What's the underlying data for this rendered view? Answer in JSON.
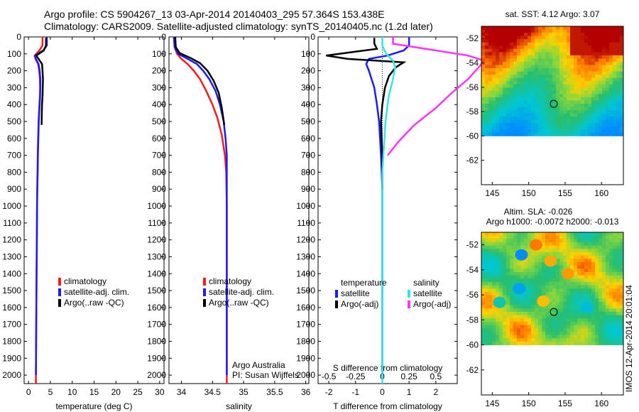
{
  "header": {
    "line1": "Argo profile: CS 5904267_13 03-Apr-2014 20140403_295 57.364S 153.438E",
    "line2": "Climatology: CARS2009. Satellite-adjusted climatology: synTS_20140405.nc (1.2d later)"
  },
  "colors": {
    "climatology": "#ff1a1a",
    "satellite": "#1a1aff",
    "argo": "#000000",
    "satellite_s": "#33e6e6",
    "argo_s": "#ff33ff"
  },
  "chart_data": [
    {
      "type": "line",
      "xlabel": "temperature (deg C)",
      "xticks": [
        0,
        5,
        10,
        15,
        20,
        25,
        30
      ],
      "xlim": [
        -1,
        31
      ],
      "ylim": [
        0,
        2050
      ],
      "yticks": [
        0,
        100,
        200,
        300,
        400,
        500,
        600,
        700,
        800,
        900,
        1000,
        1100,
        1200,
        1300,
        1400,
        1500,
        1600,
        1700,
        1800,
        1900,
        2000
      ],
      "legend": [
        "climatology",
        "satellite-adj. clim.",
        "Argo(..raw -QC)"
      ],
      "series": [
        {
          "name": "climatology",
          "color": "#ff1a1a",
          "x": [
            3.2,
            3.2,
            2.5,
            1.4,
            1.6,
            2.2,
            2.45,
            2.6,
            2.65,
            2.6,
            2.5,
            2.4,
            2.3,
            2.2,
            2.1,
            2.05,
            2.0,
            1.95,
            1.9,
            1.85,
            1.8,
            1.75,
            1.7,
            1.7
          ],
          "y": [
            0,
            50,
            80,
            110,
            130,
            160,
            200,
            250,
            300,
            350,
            400,
            450,
            500,
            600,
            700,
            800,
            900,
            1000,
            1200,
            1400,
            1600,
            1800,
            2000,
            2050
          ]
        },
        {
          "name": "satellite-adj. clim.",
          "color": "#1a1aff",
          "x": [
            4.2,
            4.2,
            3.4,
            1.5,
            1.7,
            2.3,
            2.55,
            2.7,
            2.7,
            2.65,
            2.55,
            2.45,
            2.35,
            2.25,
            2.15,
            2.1,
            2.0,
            1.95,
            1.9,
            1.85,
            1.8,
            1.75,
            1.7
          ],
          "y": [
            0,
            50,
            80,
            110,
            130,
            160,
            200,
            250,
            300,
            350,
            400,
            450,
            500,
            600,
            700,
            800,
            900,
            1000,
            1200,
            1400,
            1600,
            1800,
            2000
          ]
        },
        {
          "name": "Argo(..raw -QC)",
          "color": "#000000",
          "x": [
            4.0,
            4.0,
            3.5,
            1.8,
            2.3,
            3.1,
            3.2,
            3.3,
            3.25,
            3.2,
            3.1,
            3.05,
            3.0
          ],
          "y": [
            5,
            50,
            80,
            110,
            130,
            160,
            200,
            250,
            300,
            350,
            400,
            450,
            520
          ]
        }
      ]
    },
    {
      "type": "line",
      "xlabel": "salinity",
      "xticks": [
        34,
        34.5,
        35,
        35.5,
        36
      ],
      "xlim": [
        33.8,
        36.05
      ],
      "ylim": [
        0,
        2050
      ],
      "legend": [
        "climatology",
        "satellite-adj. clim.",
        "Argo(..raw -QC)"
      ],
      "annotations": [
        "Argo Australia",
        "PI: Susan Wijffels"
      ],
      "series": [
        {
          "name": "climatology",
          "color": "#ff1a1a",
          "x": [
            33.88,
            33.89,
            33.93,
            34.0,
            34.1,
            34.2,
            34.3,
            34.4,
            34.5,
            34.58,
            34.65,
            34.7,
            34.72,
            34.73,
            34.73,
            34.73,
            34.73,
            34.73
          ],
          "y": [
            0,
            60,
            100,
            130,
            160,
            200,
            250,
            320,
            400,
            480,
            580,
            700,
            800,
            1000,
            1200,
            1500,
            1800,
            2050
          ]
        },
        {
          "name": "satellite-adj. clim.",
          "color": "#1a1aff",
          "x": [
            33.88,
            33.89,
            33.95,
            34.1,
            34.25,
            34.35,
            34.45,
            34.55,
            34.62,
            34.68,
            34.71,
            34.73,
            34.73,
            34.73,
            34.73,
            34.73
          ],
          "y": [
            0,
            60,
            100,
            130,
            160,
            200,
            250,
            320,
            400,
            500,
            600,
            700,
            900,
            1200,
            1600,
            2000
          ]
        },
        {
          "name": "Argo(..raw -QC)",
          "color": "#000000",
          "x": [
            33.9,
            33.91,
            33.97,
            34.15,
            34.3,
            34.42,
            34.52,
            34.6,
            34.65,
            34.69
          ],
          "y": [
            0,
            60,
            95,
            125,
            155,
            200,
            260,
            330,
            420,
            520
          ]
        }
      ]
    },
    {
      "type": "line",
      "xlabel": "T difference from climatology",
      "xlabel_top": "S difference from climatology",
      "xticks": [
        -2,
        -1,
        0,
        1,
        2
      ],
      "xticks_s": [
        -0.5,
        -0.25,
        0,
        0.25,
        0.5
      ],
      "xlim": [
        -2.4,
        2.8
      ],
      "ylim": [
        0,
        2050
      ],
      "legend_titles": [
        "temperature",
        "salinity"
      ],
      "legend": [
        "satellite",
        "Argo(-adj)",
        "satellite",
        "Argo(-adj)"
      ],
      "series": [
        {
          "name": "temperature satellite",
          "color": "#1a1aff",
          "x": [
            1.0,
            1.0,
            0.8,
            0.2,
            -0.5,
            -0.6,
            -0.5,
            -0.4,
            -0.3,
            -0.2,
            -0.12,
            -0.05,
            0.0,
            0.0,
            0.0
          ],
          "y": [
            0,
            50,
            80,
            110,
            130,
            160,
            200,
            250,
            300,
            400,
            500,
            700,
            900,
            1400,
            2000
          ]
        },
        {
          "name": "temperature Argo(-adj)",
          "color": "#000000",
          "x": [
            -0.3,
            -0.3,
            -0.2,
            -2.1,
            -1.3,
            0.8,
            0.5,
            0.25,
            0.1,
            0.0,
            -0.05,
            0.0,
            0.0
          ],
          "y": [
            5,
            40,
            70,
            110,
            130,
            150,
            180,
            230,
            300,
            400,
            500,
            700,
            900
          ]
        },
        {
          "name": "salinity satellite",
          "color": "#33e6e6",
          "x": [
            0.0,
            0.0,
            0.02,
            0.05,
            0.1,
            0.12,
            0.1,
            0.06,
            0.03,
            0.0,
            0.0,
            0.0
          ],
          "y": [
            0,
            50,
            80,
            110,
            140,
            180,
            250,
            350,
            500,
            800,
            1400,
            2050
          ]
        },
        {
          "name": "salinity Argo(-adj)",
          "color": "#ff33ff",
          "x": [
            0.1,
            0.1,
            0.5,
            0.8,
            0.95,
            0.9,
            0.8,
            0.65,
            0.5,
            0.3,
            0.15,
            0.05
          ],
          "y": [
            0,
            40,
            80,
            110,
            140,
            180,
            250,
            330,
            420,
            520,
            620,
            700
          ]
        }
      ]
    },
    {
      "type": "heatmap",
      "title": "sat. SST: 4.12 Argo: 3.07",
      "xticks": [
        145,
        150,
        155,
        160
      ],
      "yticks": [
        -52,
        -54,
        -56,
        -58,
        -60,
        -62
      ],
      "xlim": [
        143.5,
        163
      ],
      "ylim": [
        -64,
        -51
      ],
      "data_ylim": [
        -60,
        -51
      ],
      "marker": {
        "lon": 153.438,
        "lat": -57.364
      }
    },
    {
      "type": "heatmap",
      "title": "Altim. SLA: -0.026",
      "subtitle": "Argo h1000: -0.0072 h2000: -0.013",
      "xticks": [
        145,
        150,
        155,
        160
      ],
      "yticks": [
        -52,
        -54,
        -56,
        -58,
        -60,
        -62
      ],
      "xlim": [
        143.5,
        163
      ],
      "ylim": [
        -64,
        -51
      ],
      "data_ylim": [
        -60,
        -51
      ],
      "marker": {
        "lon": 153.438,
        "lat": -57.364
      }
    }
  ],
  "stamp": "IMOS 12-Apr-2014 20:01:04"
}
